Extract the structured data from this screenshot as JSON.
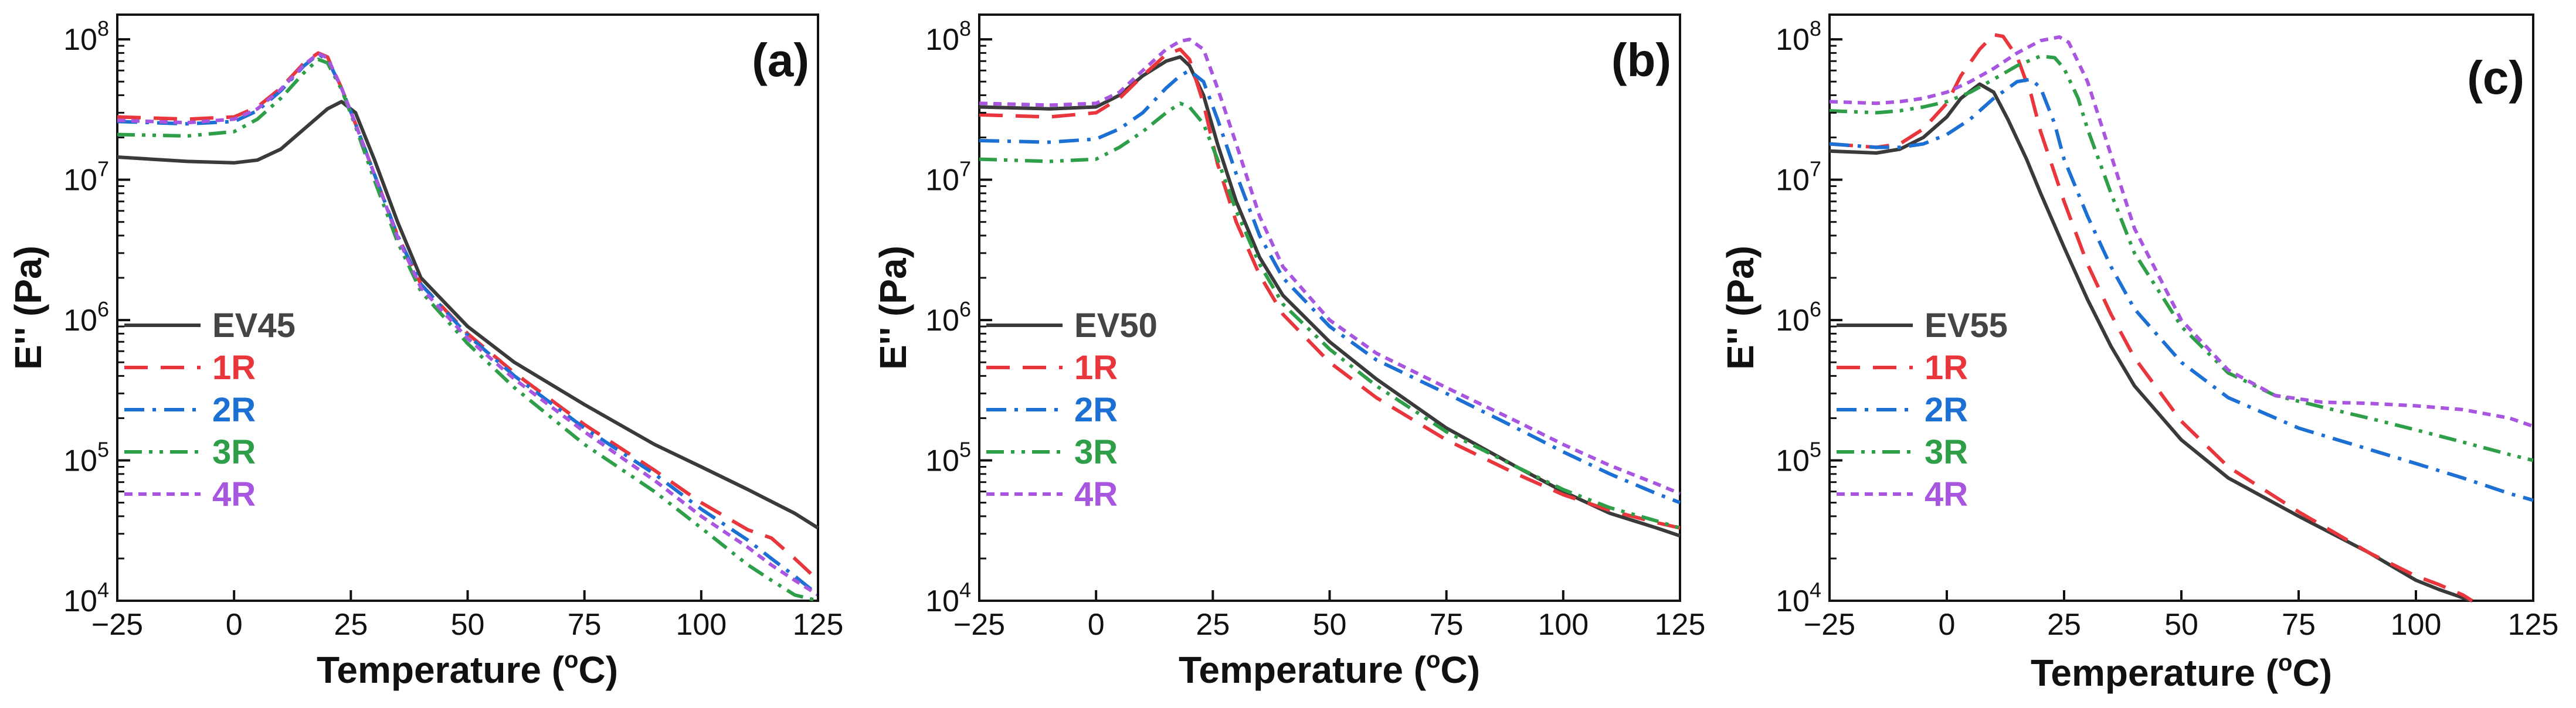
{
  "chart_data": [
    {
      "type": "line",
      "panel_label": "(a)",
      "xlabel": "Temperature (",
      "xlabel_sup": "o",
      "xlabel_end": "C)",
      "ylabel": "E'' (Pa)",
      "xlim": [
        -25,
        125
      ],
      "ylim": [
        10000,
        150000000
      ],
      "xticks": [
        -25,
        0,
        25,
        50,
        75,
        100,
        125
      ],
      "yticks": [
        {
          "base": "10",
          "exp": "4",
          "value": 10000
        },
        {
          "base": "10",
          "exp": "5",
          "value": 100000
        },
        {
          "base": "10",
          "exp": "6",
          "value": 1000000
        },
        {
          "base": "10",
          "exp": "7",
          "value": 10000000
        },
        {
          "base": "10",
          "exp": "8",
          "value": 100000000
        }
      ],
      "legend_position": "lower-left",
      "series": [
        {
          "name": "EV45",
          "color": "#3a3a3a",
          "dash": "solid",
          "x": [
            -25,
            -10,
            0,
            5,
            10,
            15,
            20,
            23,
            26,
            30,
            35,
            40,
            50,
            60,
            75,
            90,
            100,
            110,
            120,
            125
          ],
          "y": [
            14500000,
            13500000,
            13200000,
            13800000,
            16500000,
            23000000,
            32000000,
            36000000,
            30000000,
            14000000,
            5000000,
            2000000,
            900000,
            500000,
            250000,
            130000,
            90000,
            62000,
            42000,
            33000
          ]
        },
        {
          "name": "1R",
          "color": "#e8363c",
          "dash": "long-dash",
          "x": [
            -25,
            -10,
            0,
            5,
            10,
            15,
            18,
            20,
            23,
            26,
            30,
            35,
            40,
            50,
            60,
            75,
            90,
            100,
            110,
            115,
            120,
            125
          ],
          "y": [
            28000000,
            27000000,
            28000000,
            33000000,
            45000000,
            68000000,
            80000000,
            75000000,
            45000000,
            25000000,
            11000000,
            4000000,
            1800000,
            800000,
            420000,
            180000,
            85000,
            50000,
            32000,
            28000,
            20000,
            14000
          ]
        },
        {
          "name": "2R",
          "color": "#1c6fd3",
          "dash": "dash-dot",
          "x": [
            -25,
            -10,
            0,
            5,
            10,
            15,
            18,
            20,
            23,
            26,
            30,
            35,
            40,
            50,
            60,
            75,
            90,
            100,
            110,
            115,
            120,
            125
          ],
          "y": [
            26000000,
            25000000,
            26000000,
            31000000,
            43000000,
            65000000,
            78000000,
            72000000,
            45000000,
            25000000,
            11000000,
            4000000,
            1800000,
            780000,
            400000,
            170000,
            80000,
            45000,
            27000,
            20000,
            15000,
            11000
          ]
        },
        {
          "name": "3R",
          "color": "#2e9e48",
          "dash": "dash-dot-dot",
          "x": [
            -25,
            -10,
            0,
            5,
            10,
            15,
            18,
            20,
            23,
            26,
            30,
            35,
            40,
            50,
            60,
            75,
            90,
            100,
            110,
            115,
            120,
            125
          ],
          "y": [
            21000000,
            20500000,
            22000000,
            27000000,
            38000000,
            58000000,
            72000000,
            68000000,
            44000000,
            24000000,
            10000000,
            3600000,
            1600000,
            680000,
            330000,
            130000,
            60000,
            33000,
            18000,
            14000,
            11000,
            10000
          ]
        },
        {
          "name": "4R",
          "color": "#a855e0",
          "dash": "short-dash",
          "x": [
            -25,
            -10,
            0,
            5,
            10,
            15,
            18,
            20,
            23,
            26,
            30,
            35,
            40,
            50,
            60,
            75,
            90,
            100,
            110,
            115,
            120,
            125
          ],
          "y": [
            26500000,
            25500000,
            27000000,
            32000000,
            44000000,
            66000000,
            79000000,
            74000000,
            45000000,
            25000000,
            11000000,
            3900000,
            1700000,
            740000,
            380000,
            160000,
            72000,
            40000,
            24000,
            18000,
            14000,
            11000
          ]
        }
      ]
    },
    {
      "type": "line",
      "panel_label": "(b)",
      "xlabel": "Temperature (",
      "xlabel_sup": "o",
      "xlabel_end": "C)",
      "ylabel": "E'' (Pa)",
      "xlim": [
        -25,
        125
      ],
      "ylim": [
        10000,
        150000000
      ],
      "xticks": [
        -25,
        0,
        25,
        50,
        75,
        100,
        125
      ],
      "yticks": [
        {
          "base": "10",
          "exp": "4",
          "value": 10000
        },
        {
          "base": "10",
          "exp": "5",
          "value": 100000
        },
        {
          "base": "10",
          "exp": "6",
          "value": 1000000
        },
        {
          "base": "10",
          "exp": "7",
          "value": 10000000
        },
        {
          "base": "10",
          "exp": "8",
          "value": 100000000
        }
      ],
      "legend_position": "lower-left",
      "series": [
        {
          "name": "EV50",
          "color": "#3a3a3a",
          "dash": "solid",
          "x": [
            -25,
            -10,
            0,
            5,
            10,
            15,
            18,
            20,
            23,
            26,
            30,
            35,
            40,
            50,
            60,
            75,
            90,
            100,
            110,
            120,
            125
          ],
          "y": [
            33000000,
            32000000,
            33000000,
            40000000,
            55000000,
            70000000,
            75000000,
            65000000,
            40000000,
            18000000,
            7000000,
            2800000,
            1500000,
            700000,
            380000,
            170000,
            90000,
            60000,
            42000,
            33000,
            29000
          ]
        },
        {
          "name": "1R",
          "color": "#e8363c",
          "dash": "long-dash",
          "x": [
            -25,
            -10,
            0,
            5,
            10,
            15,
            18,
            20,
            23,
            26,
            30,
            35,
            40,
            50,
            60,
            75,
            90,
            100,
            110,
            120,
            125
          ],
          "y": [
            29000000,
            28000000,
            30000000,
            38000000,
            55000000,
            78000000,
            85000000,
            72000000,
            35000000,
            13000000,
            5000000,
            2100000,
            1100000,
            500000,
            280000,
            140000,
            80000,
            57000,
            44000,
            36000,
            33000
          ]
        },
        {
          "name": "2R",
          "color": "#1c6fd3",
          "dash": "dash-dot",
          "x": [
            -25,
            -10,
            0,
            5,
            10,
            15,
            18,
            20,
            23,
            26,
            30,
            35,
            40,
            50,
            60,
            75,
            90,
            100,
            110,
            120,
            125
          ],
          "y": [
            19000000,
            18500000,
            19500000,
            23000000,
            30000000,
            45000000,
            55000000,
            60000000,
            50000000,
            27000000,
            11000000,
            4000000,
            2000000,
            900000,
            520000,
            300000,
            170000,
            115000,
            80000,
            58000,
            50000
          ]
        },
        {
          "name": "3R",
          "color": "#2e9e48",
          "dash": "dash-dot-dot",
          "x": [
            -25,
            -10,
            0,
            5,
            10,
            15,
            18,
            20,
            23,
            26,
            30,
            35,
            40,
            50,
            60,
            75,
            90,
            100,
            110,
            120,
            125
          ],
          "y": [
            14000000,
            13500000,
            14000000,
            17000000,
            22000000,
            30000000,
            35000000,
            33000000,
            25000000,
            14000000,
            6000000,
            2500000,
            1300000,
            620000,
            340000,
            160000,
            90000,
            62000,
            46000,
            37000,
            33000
          ]
        },
        {
          "name": "4R",
          "color": "#a855e0",
          "dash": "short-dash",
          "x": [
            -25,
            -10,
            0,
            5,
            10,
            15,
            18,
            20,
            23,
            26,
            30,
            35,
            40,
            50,
            60,
            75,
            90,
            100,
            110,
            120,
            125
          ],
          "y": [
            35000000,
            34000000,
            35000000,
            42000000,
            60000000,
            85000000,
            97000000,
            100000000,
            85000000,
            45000000,
            18000000,
            5500000,
            2400000,
            1000000,
            580000,
            330000,
            190000,
            130000,
            92000,
            68000,
            58000
          ]
        }
      ]
    },
    {
      "type": "line",
      "panel_label": "(c)",
      "xlabel": "Temperature (",
      "xlabel_sup": "o",
      "xlabel_end": "C)",
      "ylabel": "E'' (Pa)",
      "xlim": [
        -25,
        125
      ],
      "ylim": [
        10000,
        150000000
      ],
      "xticks": [
        -25,
        0,
        25,
        50,
        75,
        100,
        125
      ],
      "yticks": [
        {
          "base": "10",
          "exp": "4",
          "value": 10000
        },
        {
          "base": "10",
          "exp": "5",
          "value": 100000
        },
        {
          "base": "10",
          "exp": "6",
          "value": 1000000
        },
        {
          "base": "10",
          "exp": "7",
          "value": 10000000
        },
        {
          "base": "10",
          "exp": "8",
          "value": 100000000
        }
      ],
      "legend_position": "lower-left",
      "series": [
        {
          "name": "EV55",
          "color": "#3a3a3a",
          "dash": "solid",
          "x": [
            -25,
            -15,
            -10,
            -5,
            0,
            3,
            7,
            10,
            13,
            17,
            20,
            25,
            30,
            35,
            40,
            50,
            60,
            75,
            90,
            100,
            105,
            110,
            112
          ],
          "y": [
            16000000,
            15500000,
            16500000,
            20000000,
            28000000,
            38000000,
            48000000,
            42000000,
            27000000,
            14000000,
            8000000,
            3300000,
            1400000,
            650000,
            340000,
            140000,
            75000,
            40000,
            22000,
            14000,
            12000,
            10500,
            10000
          ]
        },
        {
          "name": "1R",
          "color": "#e8363c",
          "dash": "long-dash",
          "x": [
            -25,
            -15,
            -10,
            -5,
            0,
            3,
            7,
            10,
            12,
            15,
            18,
            20,
            25,
            30,
            35,
            40,
            50,
            60,
            75,
            90,
            100,
            105,
            110,
            112
          ],
          "y": [
            18000000,
            17000000,
            18000000,
            23000000,
            35000000,
            55000000,
            85000000,
            108000000,
            105000000,
            75000000,
            40000000,
            22000000,
            7000000,
            2500000,
            1100000,
            540000,
            190000,
            90000,
            43000,
            22000,
            15000,
            13000,
            11000,
            10000
          ]
        },
        {
          "name": "2R",
          "color": "#1c6fd3",
          "dash": "dash-dot",
          "x": [
            -25,
            -15,
            -10,
            -5,
            0,
            5,
            10,
            15,
            18,
            20,
            23,
            25,
            30,
            35,
            40,
            50,
            60,
            75,
            90,
            100,
            110,
            120,
            125
          ],
          "y": [
            18000000,
            17000000,
            17000000,
            18000000,
            21000000,
            27000000,
            38000000,
            50000000,
            52000000,
            45000000,
            25000000,
            14000000,
            5500000,
            2400000,
            1200000,
            500000,
            280000,
            170000,
            120000,
            95000,
            75000,
            58000,
            52000
          ]
        },
        {
          "name": "3R",
          "color": "#2e9e48",
          "dash": "dash-dot-dot",
          "x": [
            -25,
            -15,
            -10,
            -5,
            0,
            5,
            10,
            15,
            20,
            23,
            25,
            28,
            30,
            35,
            40,
            50,
            60,
            70,
            80,
            90,
            100,
            110,
            120,
            125
          ],
          "y": [
            31000000,
            30000000,
            31000000,
            33000000,
            36000000,
            42000000,
            52000000,
            65000000,
            76000000,
            74000000,
            62000000,
            38000000,
            23000000,
            8000000,
            3000000,
            900000,
            420000,
            290000,
            240000,
            200000,
            165000,
            135000,
            110000,
            100000
          ]
        },
        {
          "name": "4R",
          "color": "#a855e0",
          "dash": "short-dash",
          "x": [
            -25,
            -15,
            -10,
            -5,
            0,
            5,
            10,
            15,
            20,
            24,
            26,
            30,
            35,
            40,
            50,
            60,
            70,
            80,
            90,
            100,
            110,
            120,
            125
          ],
          "y": [
            36000000,
            35000000,
            36000000,
            38000000,
            42000000,
            50000000,
            62000000,
            80000000,
            98000000,
            104000000,
            95000000,
            50000000,
            15000000,
            4500000,
            1000000,
            440000,
            290000,
            260000,
            255000,
            245000,
            230000,
            200000,
            175000
          ]
        }
      ]
    }
  ]
}
